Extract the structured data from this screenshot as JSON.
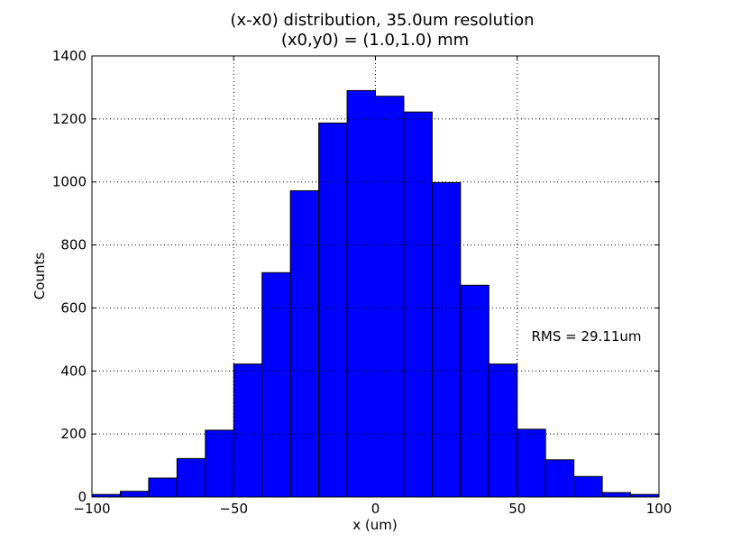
{
  "chart_data": {
    "type": "bar",
    "title": "(x-x0) distribution, 35.0um resolution",
    "subtitle": "(x0,y0) = (1.0,1.0) mm",
    "xlabel": "x (um)",
    "ylabel": "Counts",
    "xlim": [
      -100,
      100
    ],
    "ylim": [
      0,
      1400
    ],
    "grid": true,
    "bar_color": "#0000ff",
    "bin_edges": [
      -100,
      -90,
      -80,
      -70,
      -60,
      -50,
      -40,
      -30,
      -20,
      -10,
      0,
      10,
      20,
      30,
      40,
      50,
      60,
      70,
      80,
      90,
      100
    ],
    "values": [
      8,
      18,
      60,
      122,
      212,
      422,
      712,
      972,
      1187,
      1290,
      1272,
      1222,
      998,
      672,
      422,
      215,
      118,
      65,
      14,
      8
    ],
    "x_ticks": [
      -100,
      -50,
      0,
      50,
      100
    ],
    "x_tick_labels": [
      "−100",
      "−50",
      "0",
      "50",
      "100"
    ],
    "y_ticks": [
      0,
      200,
      400,
      600,
      800,
      1000,
      1200,
      1400
    ],
    "y_tick_labels": [
      "0",
      "200",
      "400",
      "600",
      "800",
      "1000",
      "1200",
      "1400"
    ],
    "annotation": {
      "text": "RMS = 29.11um",
      "x": 55,
      "y": 510
    }
  }
}
